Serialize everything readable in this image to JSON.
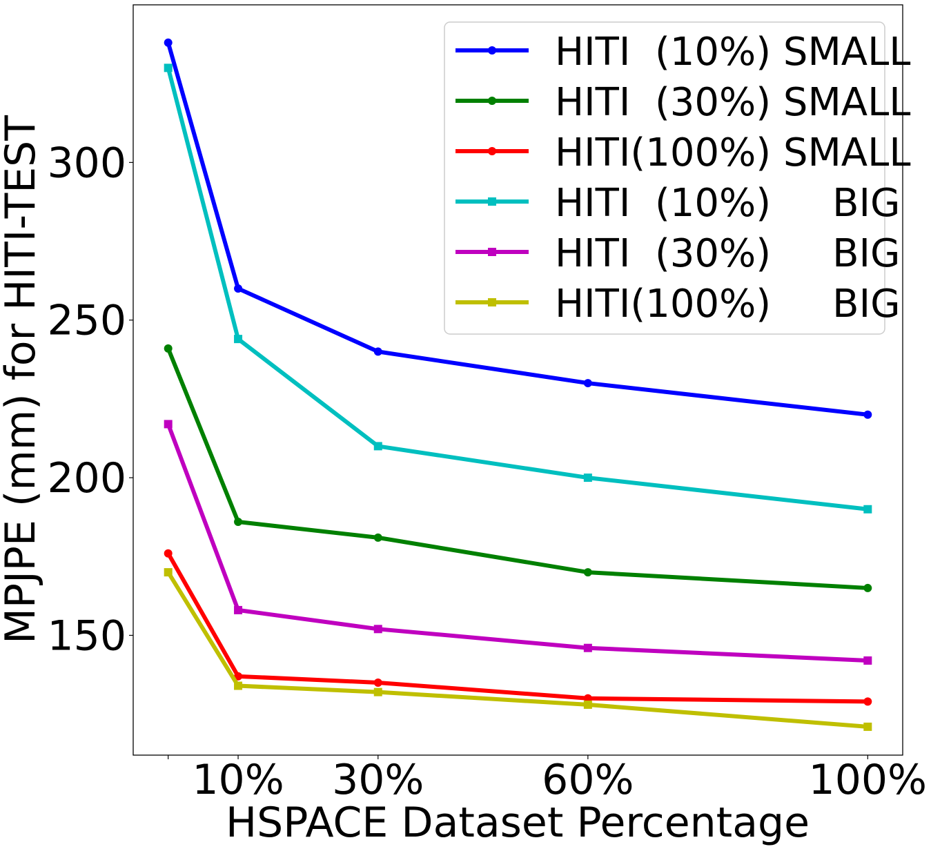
{
  "chart_data": {
    "type": "line",
    "title": "",
    "xlabel": "HSPACE Dataset Percentage",
    "ylabel": "MPJPE (mm) for HITI-TEST",
    "x": [
      0,
      10,
      30,
      60,
      100
    ],
    "x_tick_values": [
      0,
      10,
      30,
      60,
      100
    ],
    "x_tick_labels": [
      "",
      "10%",
      "30%",
      "60%",
      "100%"
    ],
    "y_ticks": [
      150,
      200,
      250,
      300
    ],
    "xlim": [
      -5,
      105
    ],
    "ylim": [
      112,
      350
    ],
    "grid": false,
    "legend_position": "top-right",
    "series": [
      {
        "name": "HITI  (10%) SMALL",
        "color": "#0000ff",
        "marker": "circle",
        "values": [
          338,
          260,
          240,
          230,
          220
        ]
      },
      {
        "name": "HITI  (30%) SMALL",
        "color": "#008000",
        "marker": "circle",
        "values": [
          241,
          186,
          181,
          170,
          165
        ]
      },
      {
        "name": "HITI(100%) SMALL",
        "color": "#ff0000",
        "marker": "circle",
        "values": [
          176,
          137,
          135,
          130,
          129
        ]
      },
      {
        "name": "HITI  (10%)     BIG",
        "color": "#00bfbf",
        "marker": "square",
        "values": [
          330,
          244,
          210,
          200,
          190
        ]
      },
      {
        "name": "HITI  (30%)     BIG",
        "color": "#bf00bf",
        "marker": "square",
        "values": [
          217,
          158,
          152,
          146,
          142
        ]
      },
      {
        "name": "HITI(100%)     BIG",
        "color": "#bfbf00",
        "marker": "square",
        "values": [
          170,
          134,
          132,
          128,
          121
        ]
      }
    ]
  }
}
